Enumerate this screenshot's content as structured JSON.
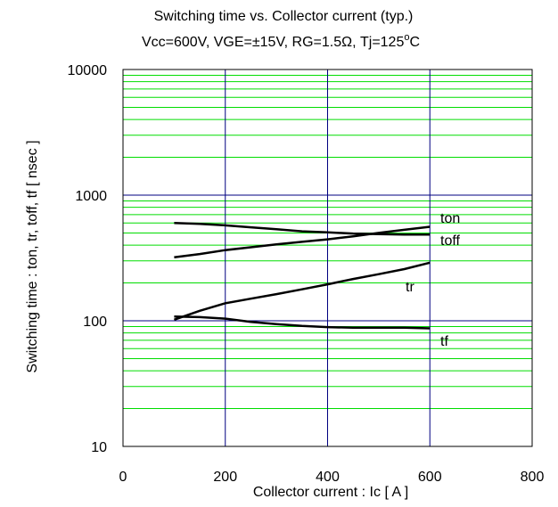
{
  "chart_data": {
    "type": "line",
    "title": "Switching time vs. Collector current (typ.)",
    "subtitle_prefix": "Vcc=600V, VGE=±15V, RG=1.5Ω,  Tj=125",
    "subtitle_sup": "o",
    "subtitle_suffix": "C",
    "xlabel": "Collector current : Ic [ A ]",
    "ylabel": "Switching time : ton, tr, toff, tf [ nsec ]",
    "xlim": [
      0,
      800
    ],
    "ylim": [
      10,
      10000
    ],
    "y_scale": "log",
    "x_ticks": [
      "0",
      "200",
      "400",
      "600",
      "800"
    ],
    "y_ticks": [
      "10",
      "100",
      "1000",
      "10000"
    ],
    "grid": true,
    "grid_major_color": "#000080",
    "grid_minor_color": "#00dd00",
    "series": [
      {
        "name": "ton",
        "x": [
          100,
          150,
          200,
          250,
          300,
          350,
          400,
          450,
          500,
          550,
          600
        ],
        "y": [
          320,
          340,
          365,
          385,
          405,
          425,
          445,
          470,
          500,
          530,
          560
        ]
      },
      {
        "name": "toff",
        "x": [
          100,
          150,
          200,
          250,
          300,
          350,
          400,
          450,
          500,
          550,
          600
        ],
        "y": [
          600,
          590,
          575,
          555,
          535,
          515,
          505,
          495,
          490,
          485,
          485
        ]
      },
      {
        "name": "tr",
        "x": [
          100,
          150,
          200,
          250,
          300,
          350,
          400,
          450,
          500,
          550,
          600
        ],
        "y": [
          102,
          120,
          138,
          150,
          163,
          178,
          195,
          215,
          235,
          258,
          290
        ]
      },
      {
        "name": "tf",
        "x": [
          100,
          150,
          200,
          250,
          300,
          350,
          400,
          450,
          500,
          550,
          600
        ],
        "y": [
          108,
          107,
          104,
          98,
          94,
          91,
          89,
          88,
          88,
          88,
          87
        ]
      }
    ]
  }
}
